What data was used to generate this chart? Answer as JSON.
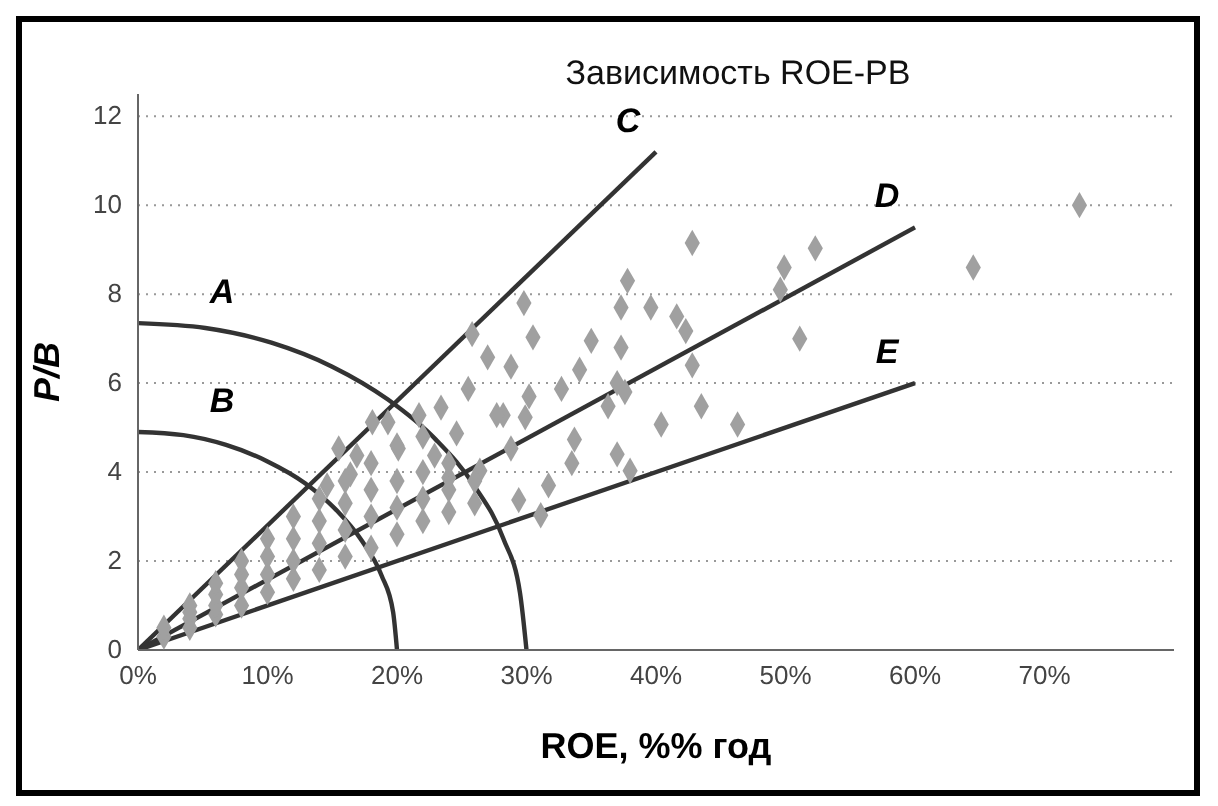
{
  "chart_data": {
    "type": "scatter",
    "title": "Зависимость ROE-PB",
    "xlabel": "ROE, %% год",
    "ylabel": "P/B",
    "xlim": [
      0,
      80
    ],
    "ylim": [
      0,
      12.5
    ],
    "xticks": [
      {
        "value": 0,
        "label": "0%"
      },
      {
        "value": 10,
        "label": "10%"
      },
      {
        "value": 20,
        "label": "20%"
      },
      {
        "value": 30,
        "label": "30%"
      },
      {
        "value": 40,
        "label": "40%"
      },
      {
        "value": 50,
        "label": "50%"
      },
      {
        "value": 60,
        "label": "60%"
      },
      {
        "value": 70,
        "label": "70%"
      }
    ],
    "yticks": [
      0,
      2,
      4,
      6,
      8,
      10,
      12
    ],
    "grid": "y",
    "marker": "diamond",
    "series": [
      {
        "color": "#a0a0a0",
        "x": [
          72.7,
          64.5,
          52.3,
          49.9,
          49.6,
          51.1,
          42.8,
          46.3,
          43.5,
          42.8,
          42.3,
          41.6,
          39.6,
          37.8,
          37.3,
          40.4,
          38,
          37,
          36.3,
          37.3,
          37,
          37.6,
          35,
          34.1,
          32.7,
          33.7,
          33.5,
          31.7,
          30.5,
          29.8,
          28.8,
          30.2,
          29.9,
          28.2,
          27,
          25.8,
          25.5,
          23.4,
          24.6,
          27.7,
          28.8,
          29.4,
          31.1,
          26.4,
          21.7,
          19.3,
          18.1,
          20.1,
          16.9,
          15.5,
          16.4,
          14.6,
          22.9,
          24,
          2,
          2,
          4,
          4,
          4,
          4,
          6,
          6,
          6,
          6,
          8,
          8,
          8,
          8,
          10,
          10,
          10,
          10,
          12,
          12,
          12,
          12,
          14,
          14,
          14,
          14,
          16,
          16,
          16,
          16,
          18,
          18,
          18,
          18,
          20,
          20,
          20,
          20,
          22,
          22,
          22,
          22,
          24,
          24,
          24,
          26,
          26
        ],
        "values": [
          10,
          8.6,
          9.03,
          8.6,
          8.1,
          7,
          9.15,
          5.07,
          5.48,
          6.4,
          7.17,
          7.5,
          7.7,
          8.3,
          7.7,
          5.07,
          4.03,
          4.4,
          5.48,
          6.8,
          6,
          5.8,
          6.95,
          6.3,
          5.87,
          4.73,
          4.2,
          3.7,
          7.03,
          7.8,
          6.37,
          5.7,
          5.23,
          5.28,
          6.58,
          7.1,
          5.87,
          5.45,
          4.87,
          5.28,
          4.53,
          3.37,
          3.03,
          4.03,
          5.28,
          5.12,
          5.12,
          4.53,
          4.37,
          4.53,
          3.95,
          3.7,
          4.37,
          3.87,
          0.3,
          0.5,
          0.5,
          0.7,
          0.85,
          1,
          0.8,
          1,
          1.25,
          1.5,
          1,
          1.4,
          1.7,
          2,
          1.3,
          1.7,
          2.1,
          2.5,
          1.6,
          2,
          2.5,
          3,
          1.8,
          2.4,
          2.9,
          3.4,
          2.1,
          2.7,
          3.3,
          3.8,
          2.3,
          3,
          3.6,
          4.2,
          2.6,
          3.2,
          3.8,
          4.6,
          2.9,
          3.4,
          4,
          4.8,
          3.1,
          3.6,
          4.2,
          3.3,
          3.8
        ]
      },
      {
        "type": "line",
        "name": "C",
        "color": "#333333",
        "marker": "none",
        "x": [
          0,
          40
        ],
        "values": [
          0,
          11.2
        ]
      },
      {
        "type": "line",
        "name": "D",
        "color": "#333333",
        "marker": "none",
        "x": [
          0,
          60
        ],
        "values": [
          0,
          9.5
        ]
      },
      {
        "type": "line",
        "name": "E",
        "color": "#333333",
        "marker": "none",
        "x": [
          0,
          60
        ],
        "values": [
          0,
          6
        ]
      },
      {
        "type": "line",
        "name": "A",
        "color": "#333333",
        "marker": "none",
        "x": [
          0,
          5.2,
          10.3,
          15,
          19.3,
          23,
          26,
          28.2,
          29.5,
          30
        ],
        "values": [
          7.35,
          7.24,
          6.91,
          6.37,
          5.63,
          4.73,
          3.68,
          2.51,
          1.28,
          0
        ]
      },
      {
        "type": "line",
        "name": "B",
        "color": "#333333",
        "marker": "none",
        "x": [
          0,
          3.5,
          6.8,
          10,
          12.9,
          15.3,
          17.3,
          18.8,
          19.7,
          20
        ],
        "values": [
          4.9,
          4.83,
          4.61,
          4.24,
          3.75,
          3.15,
          2.45,
          1.68,
          0.85,
          0
        ]
      }
    ]
  }
}
